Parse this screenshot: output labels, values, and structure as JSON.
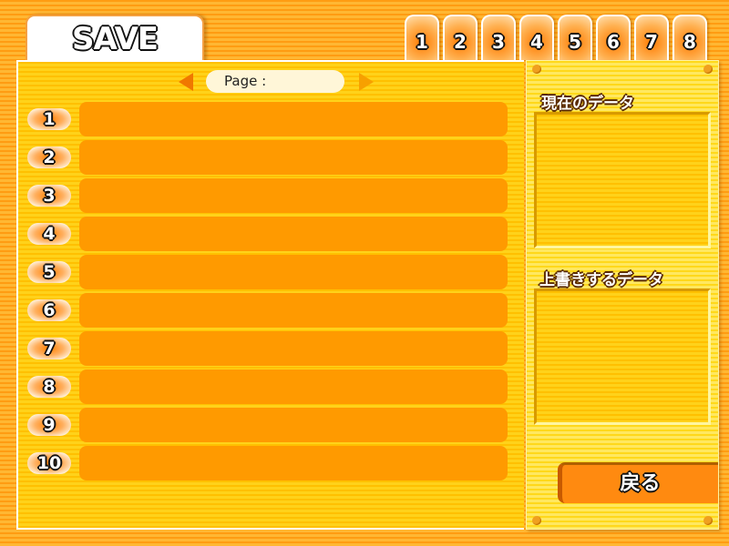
{
  "title": "SAVE",
  "page_tabs": [
    "1",
    "2",
    "3",
    "4",
    "5",
    "6",
    "7",
    "8"
  ],
  "pager": {
    "label": "Page :",
    "prev_icon": "triangle-left",
    "next_icon": "triangle-right"
  },
  "slots": [
    "1",
    "2",
    "3",
    "4",
    "5",
    "6",
    "7",
    "8",
    "9",
    "10"
  ],
  "side": {
    "current_label": "現在のデータ",
    "overwrite_label": "上書きするデータ",
    "back_label": "戻る"
  },
  "colors": {
    "background": "#ffa520",
    "panel": "#ffc800",
    "slot": "#ff9a00",
    "side_panel": "#ffe040",
    "back_button": "#ff8a10"
  }
}
